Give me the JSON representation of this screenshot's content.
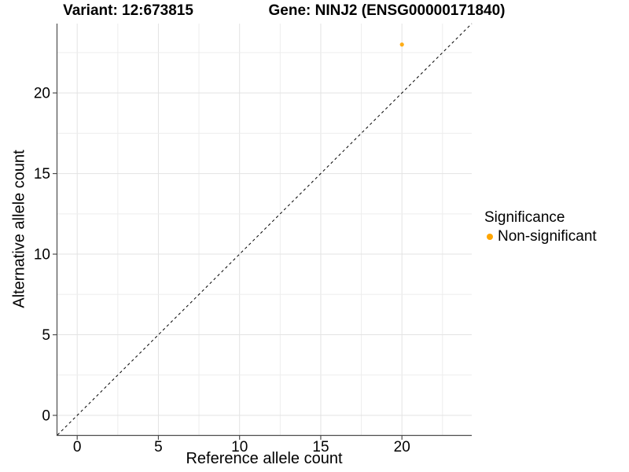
{
  "header": {
    "variant_title": "Variant: 12:673815",
    "gene_title": "Gene: NINJ2 (ENSG00000171840)"
  },
  "legend": {
    "title": "Significance",
    "items": [
      {
        "label": "Non-significant",
        "color": "#FFA500"
      }
    ]
  },
  "chart_data": {
    "type": "scatter",
    "title": "Variant: 12:673815 — Gene: NINJ2 (ENSG00000171840)",
    "xlabel": "Reference allele count",
    "ylabel": "Alternative allele count",
    "x_ticks": [
      0,
      5,
      10,
      15,
      20
    ],
    "y_ticks": [
      0,
      5,
      10,
      15,
      20
    ],
    "xlim": [
      -1.22,
      24.3
    ],
    "ylim": [
      -1.22,
      24.3
    ],
    "minor_grid_step": 2.5,
    "grid": true,
    "legend_position": "right",
    "series": [
      {
        "name": "Non-significant",
        "color": "#FFA500",
        "points": [
          {
            "x": 20,
            "y": 23
          }
        ]
      }
    ],
    "reference_line": {
      "type": "identity",
      "slope": 1,
      "intercept": 0,
      "style": "dashed",
      "color": "#000000"
    }
  },
  "colors": {
    "grid_major": "#E3E3E3",
    "grid_minor": "#EDEDED",
    "axis_line": "#4D4D4D",
    "tick_text": "#000000",
    "background": "#FFFFFF"
  }
}
